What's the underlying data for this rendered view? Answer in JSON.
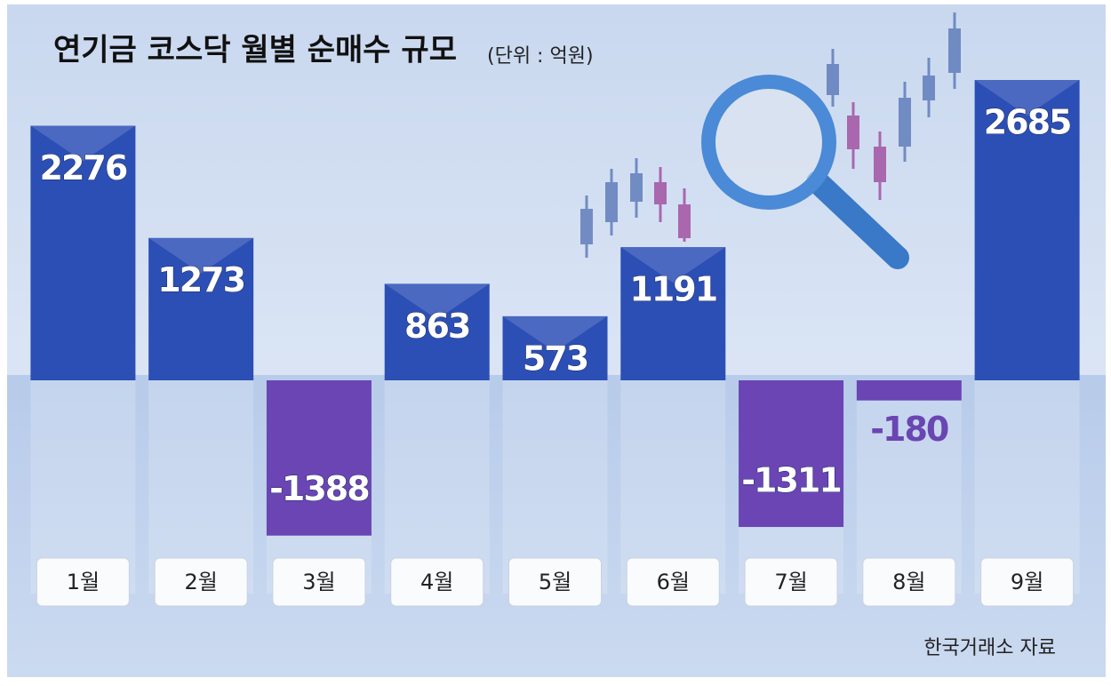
{
  "chart_data": {
    "type": "bar",
    "title": "연기금 코스닥 월별 순매수 규모",
    "subtitle": "(단위 : 억원)",
    "categories": [
      "1월",
      "2월",
      "3월",
      "4월",
      "5월",
      "6월",
      "7월",
      "8월",
      "9월"
    ],
    "values": [
      2276,
      1273,
      -1388,
      863,
      573,
      1191,
      -1311,
      -180,
      2685
    ],
    "colors": {
      "positive": "#2c4fb5",
      "negative": "#6a45b3"
    },
    "source": "한국거래소 자료"
  }
}
